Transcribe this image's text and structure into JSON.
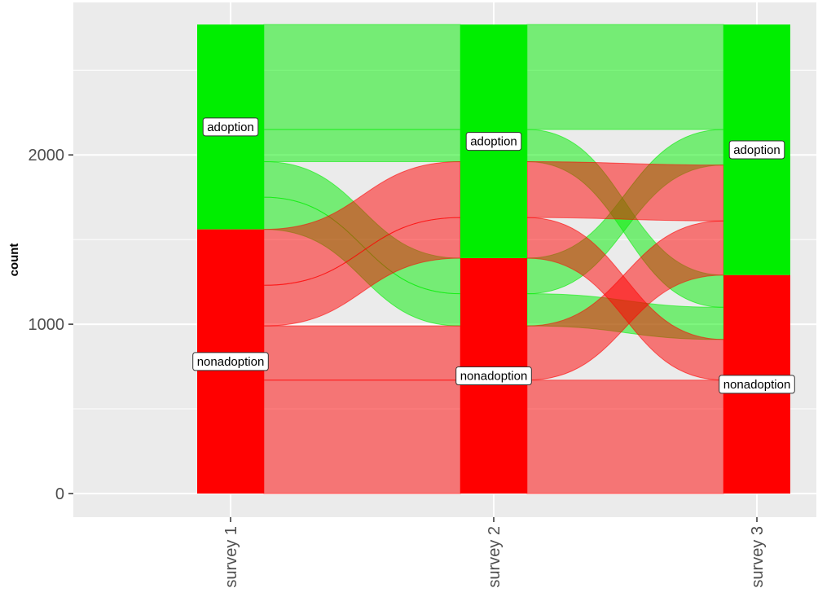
{
  "chart_data": {
    "type": "alluvial",
    "xlabel": "",
    "ylabel": "count",
    "ylim": [
      0,
      2800
    ],
    "y_ticks": [
      0,
      1000,
      2000
    ],
    "grid": true,
    "axes": [
      "survey 1",
      "survey 2",
      "survey 3"
    ],
    "categories": [
      "adoption",
      "nonadoption"
    ],
    "colors": {
      "adoption": "#00ee00",
      "nonadoption": "#ff0000",
      "panel_background": "#ebebeb",
      "gridline": "#ffffff"
    },
    "strata": [
      {
        "axis": "survey 1",
        "adoption": 1210,
        "nonadoption": 1560
      },
      {
        "axis": "survey 2",
        "adoption": 1380,
        "nonadoption": 1390
      },
      {
        "axis": "survey 3",
        "adoption": 1480,
        "nonadoption": 1290
      }
    ],
    "flows": [
      {
        "s1": "adoption",
        "s2": "adoption",
        "s3": "adoption",
        "count": 620
      },
      {
        "s1": "adoption",
        "s2": "adoption",
        "s3": "nonadoption",
        "count": 190
      },
      {
        "s1": "adoption",
        "s2": "nonadoption",
        "s3": "adoption",
        "count": 210
      },
      {
        "s1": "adoption",
        "s2": "nonadoption",
        "s3": "nonadoption",
        "count": 190
      },
      {
        "s1": "nonadoption",
        "s2": "adoption",
        "s3": "adoption",
        "count": 330
      },
      {
        "s1": "nonadoption",
        "s2": "adoption",
        "s3": "nonadoption",
        "count": 240
      },
      {
        "s1": "nonadoption",
        "s2": "nonadoption",
        "s3": "adoption",
        "count": 320
      },
      {
        "s1": "nonadoption",
        "s2": "nonadoption",
        "s3": "nonadoption",
        "count": 670
      }
    ]
  }
}
